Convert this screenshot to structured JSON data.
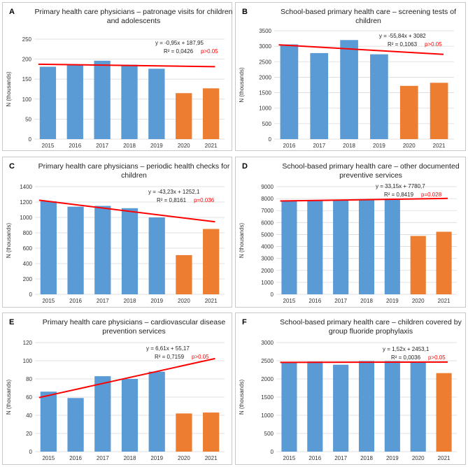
{
  "colors": {
    "pre": "#5b9bd5",
    "covid": "#ed7d31",
    "trend": "#ff0000",
    "pvalue": "#ff0000",
    "grid": "#d9d9d9"
  },
  "chart_data": [
    {
      "label": "A",
      "type": "bar",
      "title": [
        "Primary health care physicians – patronage visits for children",
        "and adolescents"
      ],
      "ylabel": "N (thousands)",
      "ylim": [
        0,
        250
      ],
      "ytick_step": 50,
      "categories": [
        "2015",
        "2016",
        "2017",
        "2018",
        "2019",
        "2020",
        "2021"
      ],
      "values": [
        181,
        187,
        196,
        186,
        176,
        115,
        127
      ],
      "highlight_from": 5,
      "trend": {
        "slope": -0.95,
        "intercept": 187.95
      },
      "equation": "y = -0,95x + 187,95",
      "r2": "R² = 0,0426",
      "pvalue": "p>0.05"
    },
    {
      "label": "B",
      "type": "bar",
      "title": [
        "School-based primary health care – screening tests of",
        "children"
      ],
      "ylabel": "N (thousands)",
      "ylim": [
        0,
        3500
      ],
      "ytick_step": 500,
      "categories": [
        "2016",
        "2017",
        "2018",
        "2019",
        "2020",
        "2021"
      ],
      "values": [
        3060,
        2780,
        3200,
        2740,
        1720,
        1820
      ],
      "highlight_from": 4,
      "trend": {
        "slope": -55.84,
        "intercept": 3082
      },
      "equation": "y = -55,84x + 3082",
      "r2": "R² = 0,1063",
      "pvalue": "p>0.05"
    },
    {
      "label": "C",
      "type": "bar",
      "title": [
        "Primary health care physicians – periodic health checks for",
        "children"
      ],
      "ylabel": "N (thousands)",
      "ylim": [
        0,
        1400
      ],
      "ytick_step": 200,
      "categories": [
        "2015",
        "2016",
        "2017",
        "2018",
        "2019",
        "2020",
        "2021"
      ],
      "values": [
        1210,
        1140,
        1150,
        1120,
        1000,
        510,
        850
      ],
      "highlight_from": 5,
      "trend": {
        "slope": -43.23,
        "intercept": 1252.1
      },
      "equation": "y = -43,23x + 1252,1",
      "r2": "R² = 0,8161",
      "pvalue": "p=0.036"
    },
    {
      "label": "D",
      "type": "bar",
      "title": [
        "School-based primary health care – other documented",
        "preventive services"
      ],
      "ylabel": "N (thousands)",
      "ylim": [
        0,
        9000
      ],
      "ytick_step": 1000,
      "categories": [
        "2015",
        "2016",
        "2017",
        "2018",
        "2019",
        "2020",
        "2021"
      ],
      "values": [
        7850,
        7870,
        7900,
        7950,
        8000,
        4880,
        5230
      ],
      "highlight_from": 5,
      "trend": {
        "slope": 33.15,
        "intercept": 7780.7
      },
      "equation": "y = 33,15x + 7780,7",
      "r2": "R² = 0,8419",
      "pvalue": "p=0.028"
    },
    {
      "label": "E",
      "type": "bar",
      "title": [
        "Primary health care physicians – cardiovascular disease",
        "prevention services"
      ],
      "ylabel": "N (thousands)",
      "ylim": [
        0,
        120
      ],
      "ytick_step": 20,
      "categories": [
        "2015",
        "2016",
        "2017",
        "2018",
        "2019",
        "2020",
        "2021"
      ],
      "values": [
        66,
        59,
        83,
        80,
        88,
        42,
        43
      ],
      "highlight_from": 5,
      "trend": {
        "slope": 6.61,
        "intercept": 55.17
      },
      "equation": "y = 6,61x + 55,17",
      "r2": "R² = 0,7159",
      "pvalue": "p>0.05"
    },
    {
      "label": "F",
      "type": "bar",
      "title": [
        "School-based primary health care – children covered by",
        "group fluoride prophylaxis"
      ],
      "ylabel": "N (thousands)",
      "ylim": [
        0,
        3000
      ],
      "ytick_step": 500,
      "categories": [
        "2015",
        "2016",
        "2017",
        "2018",
        "2019",
        "2020",
        "2021"
      ],
      "values": [
        2470,
        2480,
        2390,
        2490,
        2490,
        2470,
        2160
      ],
      "highlight_from": 6,
      "trend": {
        "slope": 1.52,
        "intercept": 2453.1
      },
      "equation": "y = 1,52x + 2453,1",
      "r2": "R² = 0,0036",
      "pvalue": "p>0.05"
    }
  ]
}
